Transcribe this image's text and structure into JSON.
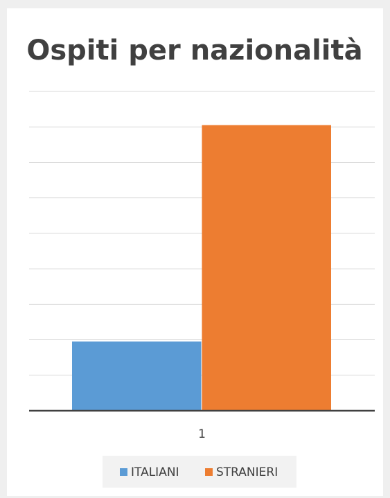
{
  "chart_data": {
    "type": "bar",
    "title": "Ospiti per nazionalità",
    "categories": [
      "1"
    ],
    "series": [
      {
        "name": "ITALIANI",
        "values": [
          19.5
        ],
        "color": "#5b9bd5"
      },
      {
        "name": "STRANIERI",
        "values": [
          80.5
        ],
        "color": "#ed7d31"
      }
    ],
    "ylim": [
      0,
      90
    ],
    "grid": true,
    "axis_labels_y": "hidden",
    "legend": "bottom",
    "xlabel": "",
    "ylabel": ""
  }
}
